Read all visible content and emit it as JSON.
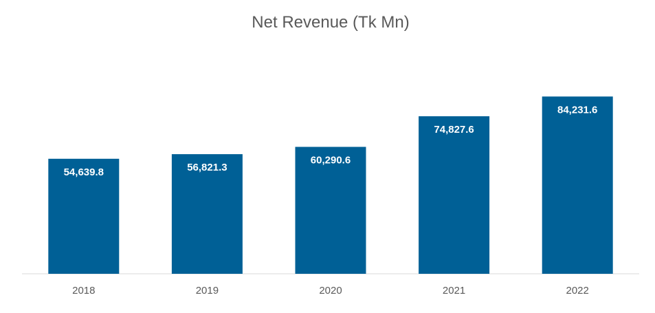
{
  "chart_data": {
    "type": "bar",
    "title": "Net Revenue (Tk Mn)",
    "xlabel": "",
    "ylabel": "",
    "categories": [
      "2018",
      "2019",
      "2020",
      "2021",
      "2022"
    ],
    "values": [
      54639.8,
      56821.3,
      60290.6,
      74827.6,
      84231.6
    ],
    "data_labels": [
      "54,639.8",
      "56,821.3",
      "60,290.6",
      "74,827.6",
      "84,231.6"
    ],
    "ylim": [
      0,
      100000
    ],
    "grid": false,
    "legend": "none",
    "bar_color": "#006096",
    "axis_color": "#d9d9d9",
    "text_color": "#595959",
    "label_color": "#ffffff"
  }
}
